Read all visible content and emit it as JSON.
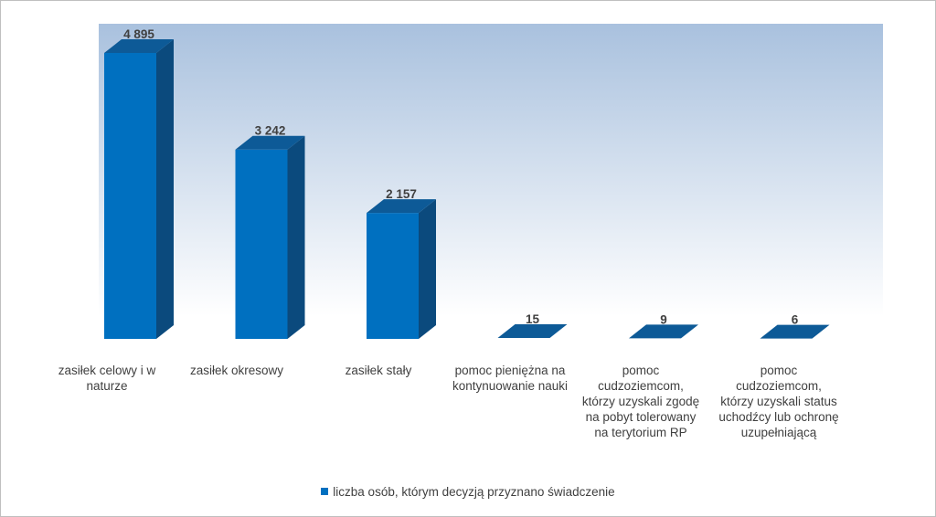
{
  "chart_data": {
    "type": "bar",
    "categories": [
      "zasiłek celowy i w naturze",
      "zasiłek okresowy",
      "zasiłek stały",
      "pomoc pieniężna na kontynuowanie nauki",
      "pomoc cudzoziemcom, którzy uzyskali zgodę na pobyt tolerowany na terytorium RP",
      "pomoc cudzoziemcom, którzy uzyskali status uchodźcy lub ochronę uzupełniającą"
    ],
    "series": [
      {
        "name": "liczba osób, którym decyzją przyznano świadczenie",
        "values": [
          4895,
          3242,
          2157,
          15,
          9,
          6
        ],
        "value_labels": [
          "4 895",
          "3 242",
          "2 157",
          "15",
          "9",
          "6"
        ],
        "color": "#0070c0"
      }
    ],
    "ylim": [
      0,
      5200
    ],
    "grid": false,
    "legend_position": "bottom",
    "style": "3d-column",
    "colors": {
      "bar_front": "#0070c0",
      "bar_side": "#0b4a7d",
      "bar_top": "#0d5a97",
      "wall_top": "#a9c1de",
      "wall_bottom": "#ffffff"
    }
  }
}
